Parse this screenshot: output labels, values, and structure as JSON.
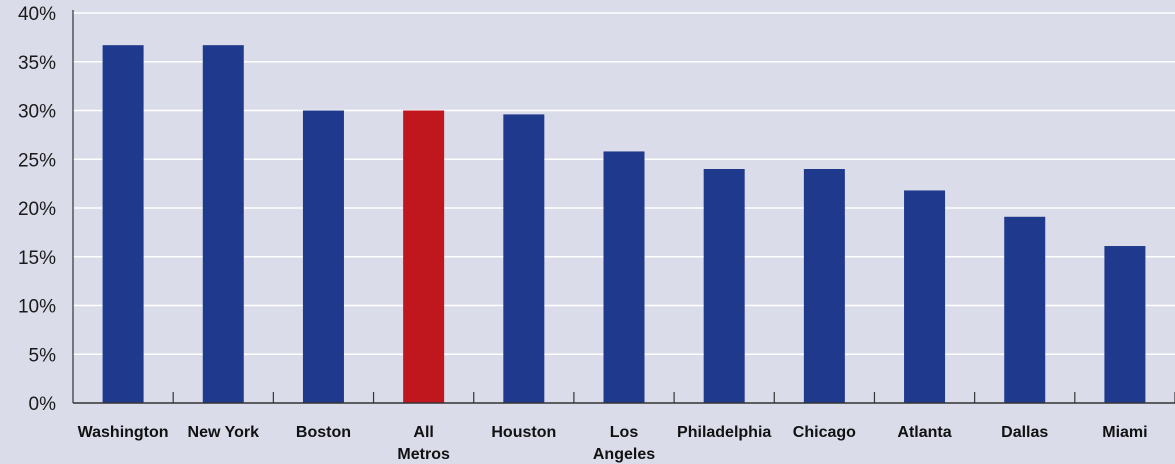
{
  "chart_data": {
    "type": "bar",
    "title": "",
    "xlabel": "",
    "ylabel": "",
    "categories": [
      "Washington",
      "New York",
      "Boston",
      "All Metros",
      "Houston",
      "Los Angeles",
      "Philadelphia",
      "Chicago",
      "Atlanta",
      "Dallas",
      "Miami"
    ],
    "category_lines": [
      [
        "Washington"
      ],
      [
        "New York"
      ],
      [
        "Boston"
      ],
      [
        "All",
        "Metros"
      ],
      [
        "Houston"
      ],
      [
        "Los",
        "Angeles"
      ],
      [
        "Philadelphia"
      ],
      [
        "Chicago"
      ],
      [
        "Atlanta"
      ],
      [
        "Dallas"
      ],
      [
        "Miami"
      ]
    ],
    "values": [
      36.7,
      36.7,
      30.0,
      30.0,
      29.6,
      25.8,
      24.0,
      24.0,
      21.8,
      19.1,
      16.1
    ],
    "ylim": [
      0,
      40
    ],
    "yticks": [
      0,
      5,
      10,
      15,
      20,
      25,
      30,
      35,
      40
    ],
    "ytick_labels": [
      "0%",
      "5%",
      "10%",
      "15%",
      "20%",
      "25%",
      "30%",
      "35%",
      "40%"
    ],
    "grid": true,
    "legend": "none",
    "colors": {
      "background": "#dadcea",
      "bar": "#1f3a8d",
      "highlight": "#c0161d",
      "grid": "#ffffff",
      "axis": "#333333"
    },
    "highlight_category": "All Metros"
  }
}
